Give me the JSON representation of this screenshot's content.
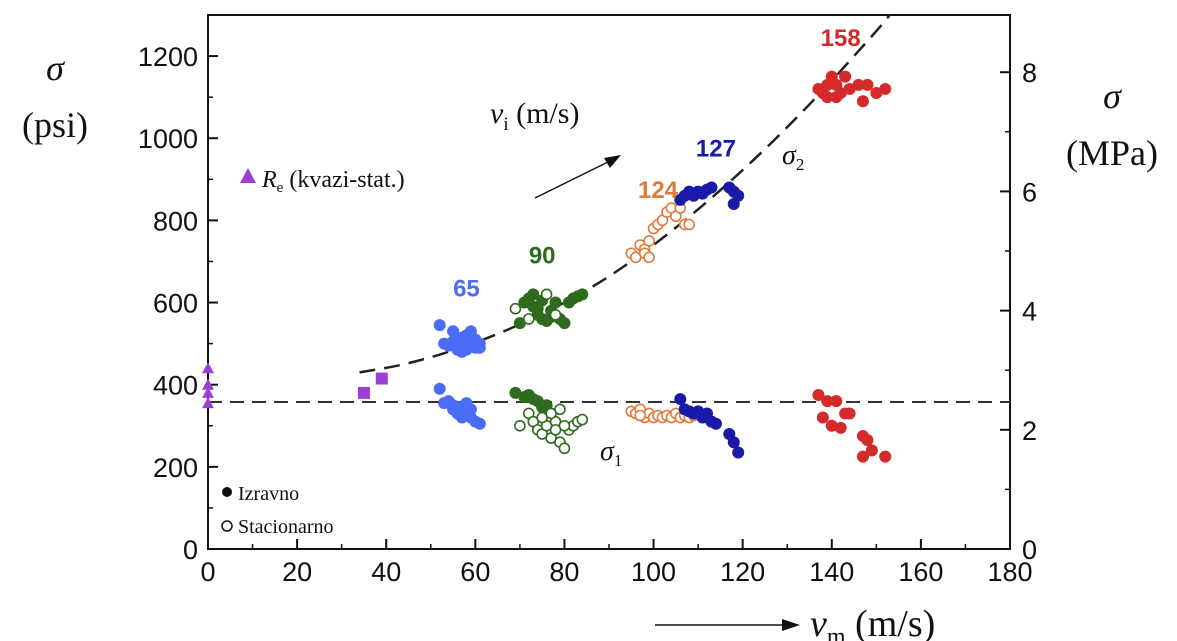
{
  "chart_data": {
    "type": "scatter",
    "xlabel": {
      "symbol": "v",
      "subscript": "m",
      "unit": "(m/s)"
    },
    "ylabel_left": {
      "symbol": "σ",
      "unit": "(psi)"
    },
    "ylabel_right": {
      "symbol": "σ",
      "unit": "(MPa)"
    },
    "xlim": [
      0,
      180
    ],
    "ylim_left": [
      0,
      1300
    ],
    "ylim_right_mpa": [
      0,
      8.96
    ],
    "x_ticks": [
      "0",
      "20",
      "40",
      "60",
      "80",
      "100",
      "120",
      "140",
      "160",
      "180"
    ],
    "y_ticks_left": [
      "0",
      "200",
      "400",
      "600",
      "800",
      "1000",
      "1200"
    ],
    "y_ticks_right": [
      "0",
      "2",
      "4",
      "6",
      "8"
    ],
    "legend": {
      "quasi_static": {
        "symbol": "R",
        "subscript": "e",
        "text": "(kvazi-stat.)"
      },
      "direct": "Izravno",
      "stationary": "Stacionarno"
    },
    "annotations": {
      "velocity": {
        "symbol": "v",
        "subscript": "i",
        "unit": "(m/s)"
      },
      "sigma1": {
        "symbol": "σ",
        "subscript": "1"
      },
      "sigma2": {
        "symbol": "σ",
        "subscript": "2"
      }
    },
    "reference_line_psi": 358,
    "groups": [
      {
        "label": "65",
        "color": "#4a6cf7",
        "upper_filled": [
          [
            52,
            545
          ],
          [
            55,
            530
          ],
          [
            56,
            510
          ],
          [
            57,
            495
          ],
          [
            58,
            500
          ],
          [
            58,
            520
          ],
          [
            59,
            505
          ],
          [
            60,
            490
          ],
          [
            61,
            500
          ],
          [
            56,
            485
          ],
          [
            57,
            515
          ],
          [
            53,
            500
          ],
          [
            59,
            530
          ],
          [
            60,
            510
          ],
          [
            54,
            495
          ],
          [
            58,
            485
          ],
          [
            57,
            480
          ],
          [
            55,
            505
          ],
          [
            61,
            490
          ]
        ],
        "lower_filled": [
          [
            52,
            390
          ],
          [
            54,
            360
          ],
          [
            55,
            350
          ],
          [
            56,
            345
          ],
          [
            57,
            340
          ],
          [
            58,
            330
          ],
          [
            58,
            355
          ],
          [
            59,
            320
          ],
          [
            60,
            310
          ],
          [
            61,
            305
          ],
          [
            56,
            330
          ],
          [
            57,
            320
          ],
          [
            55,
            340
          ],
          [
            53,
            355
          ],
          [
            59,
            340
          ]
        ]
      },
      {
        "label": "90",
        "color": "#2e6b1f",
        "upper_filled": [
          [
            70,
            550
          ],
          [
            71,
            600
          ],
          [
            72,
            610
          ],
          [
            73,
            590
          ],
          [
            74,
            570
          ],
          [
            75,
            560
          ],
          [
            76,
            555
          ],
          [
            77,
            580
          ],
          [
            78,
            600
          ],
          [
            79,
            560
          ],
          [
            80,
            550
          ],
          [
            81,
            600
          ],
          [
            82,
            610
          ],
          [
            83,
            615
          ],
          [
            84,
            620
          ],
          [
            73,
            620
          ],
          [
            75,
            605
          ],
          [
            77,
            565
          ],
          [
            74,
            585
          ]
        ],
        "upper_open": [
          [
            69,
            585
          ],
          [
            72,
            560
          ],
          [
            76,
            620
          ],
          [
            78,
            570
          ]
        ],
        "lower_filled": [
          [
            69,
            380
          ],
          [
            71,
            370
          ],
          [
            73,
            365
          ],
          [
            74,
            360
          ],
          [
            75,
            345
          ],
          [
            76,
            350
          ],
          [
            72,
            375
          ]
        ],
        "lower_open": [
          [
            70,
            300
          ],
          [
            72,
            330
          ],
          [
            73,
            310
          ],
          [
            74,
            290
          ],
          [
            75,
            280
          ],
          [
            76,
            300
          ],
          [
            77,
            270
          ],
          [
            78,
            310
          ],
          [
            79,
            260
          ],
          [
            80,
            245
          ],
          [
            81,
            290
          ],
          [
            82,
            300
          ],
          [
            83,
            310
          ],
          [
            84,
            315
          ],
          [
            75,
            320
          ],
          [
            77,
            330
          ],
          [
            79,
            340
          ],
          [
            80,
            300
          ],
          [
            78,
            290
          ]
        ]
      },
      {
        "label": "124",
        "color": "#e07a3c",
        "upper_open": [
          [
            95,
            720
          ],
          [
            96,
            710
          ],
          [
            97,
            740
          ],
          [
            98,
            730
          ],
          [
            99,
            750
          ],
          [
            100,
            780
          ],
          [
            101,
            790
          ],
          [
            102,
            800
          ],
          [
            103,
            820
          ],
          [
            104,
            830
          ],
          [
            105,
            810
          ],
          [
            106,
            830
          ],
          [
            107,
            790
          ],
          [
            108,
            790
          ],
          [
            98,
            720
          ],
          [
            99,
            710
          ]
        ],
        "lower_open": [
          [
            95,
            335
          ],
          [
            96,
            330
          ],
          [
            97,
            340
          ],
          [
            98,
            320
          ],
          [
            99,
            330
          ],
          [
            100,
            320
          ],
          [
            101,
            325
          ],
          [
            102,
            320
          ],
          [
            103,
            325
          ],
          [
            104,
            320
          ],
          [
            105,
            330
          ],
          [
            106,
            320
          ],
          [
            107,
            325
          ],
          [
            108,
            320
          ],
          [
            109,
            325
          ],
          [
            97,
            325
          ]
        ]
      },
      {
        "label": "127",
        "color": "#1a1aa8",
        "upper_filled": [
          [
            106,
            850
          ],
          [
            107,
            860
          ],
          [
            108,
            870
          ],
          [
            109,
            860
          ],
          [
            110,
            870
          ],
          [
            111,
            865
          ],
          [
            112,
            875
          ],
          [
            113,
            880
          ],
          [
            117,
            880
          ],
          [
            118,
            870
          ],
          [
            119,
            860
          ],
          [
            118,
            840
          ]
        ],
        "lower_filled": [
          [
            106,
            365
          ],
          [
            107,
            340
          ],
          [
            108,
            335
          ],
          [
            109,
            330
          ],
          [
            110,
            335
          ],
          [
            111,
            320
          ],
          [
            112,
            330
          ],
          [
            113,
            310
          ],
          [
            114,
            305
          ],
          [
            117,
            280
          ],
          [
            118,
            260
          ],
          [
            119,
            235
          ]
        ]
      },
      {
        "label": "158",
        "color": "#d42a2a",
        "upper_filled": [
          [
            137,
            1120
          ],
          [
            138,
            1110
          ],
          [
            139,
            1100
          ],
          [
            140,
            1150
          ],
          [
            141,
            1130
          ],
          [
            142,
            1110
          ],
          [
            143,
            1150
          ],
          [
            144,
            1120
          ],
          [
            146,
            1130
          ],
          [
            147,
            1090
          ],
          [
            148,
            1130
          ],
          [
            150,
            1110
          ],
          [
            152,
            1120
          ],
          [
            139,
            1130
          ],
          [
            141,
            1100
          ]
        ],
        "lower_filled": [
          [
            137,
            375
          ],
          [
            138,
            320
          ],
          [
            139,
            360
          ],
          [
            140,
            300
          ],
          [
            141,
            360
          ],
          [
            142,
            295
          ],
          [
            143,
            330
          ],
          [
            144,
            330
          ],
          [
            147,
            275
          ],
          [
            148,
            265
          ],
          [
            147,
            225
          ],
          [
            149,
            240
          ],
          [
            152,
            225
          ]
        ]
      }
    ],
    "quasi_static_points": {
      "color": "#9b3ed6",
      "triangles": [
        [
          0,
          440
        ],
        [
          0,
          400
        ],
        [
          0,
          380
        ],
        [
          0,
          355
        ]
      ],
      "squares": [
        [
          35,
          380
        ],
        [
          39,
          415
        ]
      ]
    },
    "sigma2_curve": [
      [
        34,
        430
      ],
      [
        45,
        450
      ],
      [
        60,
        500
      ],
      [
        75,
        570
      ],
      [
        90,
        660
      ],
      [
        105,
        780
      ],
      [
        120,
        920
      ],
      [
        135,
        1080
      ],
      [
        150,
        1260
      ],
      [
        153,
        1300
      ]
    ]
  }
}
